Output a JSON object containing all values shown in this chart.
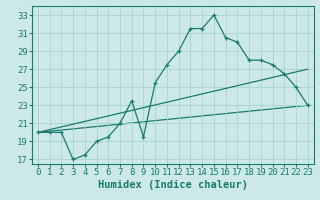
{
  "xlabel": "Humidex (Indice chaleur)",
  "ylabel": "",
  "xlim": [
    -0.5,
    23.5
  ],
  "ylim": [
    16.5,
    34.0
  ],
  "yticks": [
    17,
    19,
    21,
    23,
    25,
    27,
    29,
    31,
    33
  ],
  "xticks": [
    0,
    1,
    2,
    3,
    4,
    5,
    6,
    7,
    8,
    9,
    10,
    11,
    12,
    13,
    14,
    15,
    16,
    17,
    18,
    19,
    20,
    21,
    22,
    23
  ],
  "bg_color": "#cce9e7",
  "grid_color": "#a8d4d1",
  "line_color": "#1a7a6e",
  "line1_x": [
    0,
    1,
    2,
    3,
    4,
    5,
    6,
    7,
    8,
    9,
    10,
    11,
    12,
    13,
    14,
    15,
    16,
    17,
    18,
    19,
    20,
    21,
    22,
    23
  ],
  "line1_y": [
    20.0,
    20.0,
    20.0,
    17.0,
    17.5,
    19.0,
    19.5,
    21.0,
    23.5,
    19.5,
    25.5,
    27.5,
    29.0,
    31.5,
    31.5,
    33.0,
    30.5,
    30.0,
    28.0,
    28.0,
    27.5,
    26.5,
    25.0,
    23.0
  ],
  "line2_x": [
    0,
    23
  ],
  "line2_y": [
    20.0,
    27.0
  ],
  "line3_x": [
    0,
    23
  ],
  "line3_y": [
    20.0,
    23.0
  ],
  "tick_fontsize": 6.5,
  "label_fontsize": 7.5
}
